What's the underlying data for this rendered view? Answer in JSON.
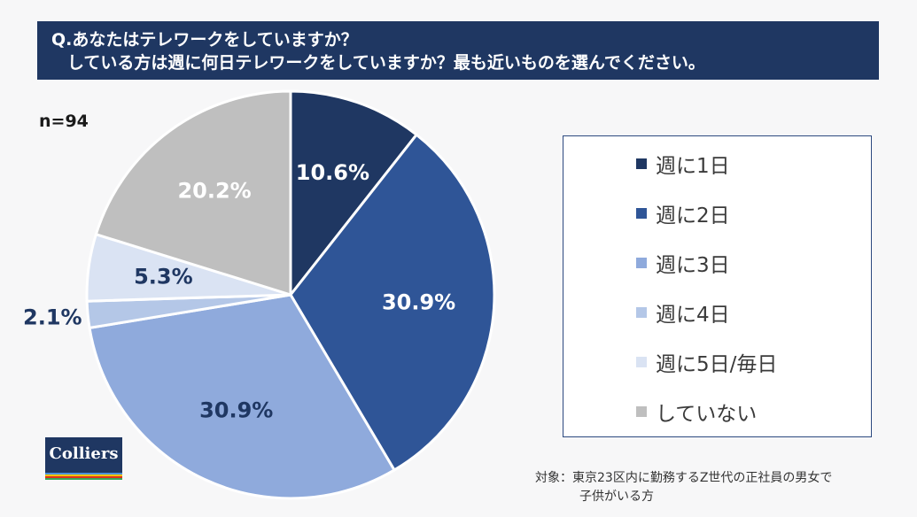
{
  "title": {
    "line1": "Q.あなたはテレワークをしていますか？",
    "line2": "している方は週に何日テレワークをしていますか？最も近いものを選んでください。"
  },
  "sample_size": "n=94",
  "footnote": {
    "line1": "対象：東京23区内に勤務するZ世代の正社員の男女で",
    "line2": "子供がいる方"
  },
  "logo": {
    "text": "Colliers"
  },
  "colors": {
    "title_bg": "#1f3762",
    "slice_1": "#1f3762",
    "slice_2": "#2f5597",
    "slice_3": "#8faadc",
    "slice_4": "#b4c7e7",
    "slice_5": "#dae3f3",
    "slice_6": "#bfbfbf"
  },
  "chart_data": {
    "type": "pie",
    "title": "Q.あなたはテレワークをしていますか？ している方は週に何日テレワークをしていますか？最も近いものを選んでください。",
    "start": "12 o'clock, clockwise",
    "legend_position": "right",
    "slices": [
      {
        "label": "週に1日",
        "value": 10.6,
        "display": "10.6%",
        "color": "#1f3762",
        "label_color": "#ffffff"
      },
      {
        "label": "週に2日",
        "value": 30.9,
        "display": "30.9%",
        "color": "#2f5597",
        "label_color": "#ffffff"
      },
      {
        "label": "週に3日",
        "value": 30.9,
        "display": "30.9%",
        "color": "#8faadc",
        "label_color": "#1f3762"
      },
      {
        "label": "週に4日",
        "value": 2.1,
        "display": "2.1%",
        "color": "#b4c7e7",
        "label_color": "#1f3762",
        "label_outside": true
      },
      {
        "label": "週に5日/毎日",
        "value": 5.3,
        "display": "5.3%",
        "color": "#dae3f3",
        "label_color": "#1f3762"
      },
      {
        "label": "していない",
        "value": 20.2,
        "display": "20.2%",
        "color": "#bfbfbf",
        "label_color": "#ffffff"
      }
    ]
  }
}
